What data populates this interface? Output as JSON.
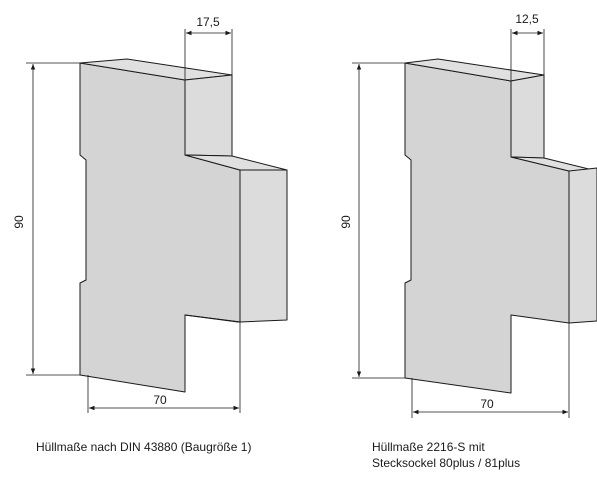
{
  "left_drawing": {
    "dim_top": "17,5",
    "dim_height": "90",
    "dim_width": "70",
    "caption": "Hüllmaße nach DIN 43880 (Baugröße 1)"
  },
  "right_drawing": {
    "dim_top": "12,5",
    "dim_height": "90",
    "dim_width": "70",
    "caption_line1": "Hüllmaße 2216-S mit",
    "caption_line2": "Stecksockel 80plus / 81plus"
  },
  "colors": {
    "front_face": "#d4d4d4",
    "side_face": "#dcdcdc",
    "line": "#1a1a1a"
  }
}
